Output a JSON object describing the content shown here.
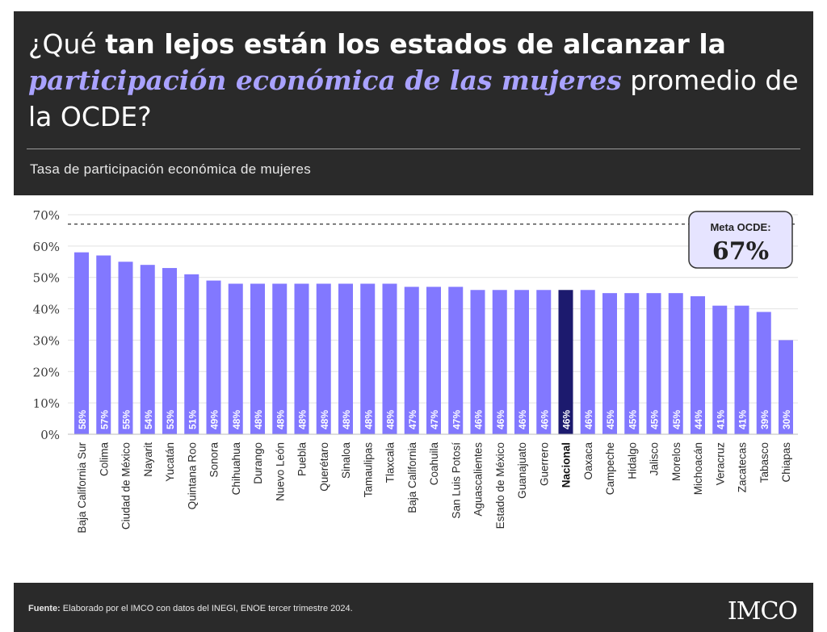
{
  "header": {
    "title_part1": "¿Qué ",
    "title_bold": "tan lejos están los estados de alcanzar la",
    "title_highlight": "participación económica de las mujeres",
    "title_part2": " promedio de la OCDE?",
    "subtitle": "Tasa de participación económica de mujeres"
  },
  "meta_box": {
    "label": "Meta OCDE:",
    "value": "67%"
  },
  "footer": {
    "source_label": "Fuente:",
    "source_text": " Elaborado por el IMCO con datos del INEGI, ENOE tercer trimestre 2024.",
    "logo": "IMCO"
  },
  "colors": {
    "bar": "#8278ff",
    "bar_highlight": "#1c1a6e",
    "meta_box_bg": "#e6e4ff",
    "header_bg": "#2a2a2a"
  },
  "chart_data": {
    "type": "bar",
    "categories": [
      "Baja California Sur",
      "Colima",
      "Ciudad de México",
      "Nayarit",
      "Yucatán",
      "Quintana Roo",
      "Sonora",
      "Chihuahua",
      "Durango",
      "Nuevo León",
      "Puebla",
      "Querétaro",
      "Sinaloa",
      "Tamaulipas",
      "Tlaxcala",
      "Baja California",
      "Coahuila",
      "San Luis Potosí",
      "Aguascalientes",
      "Estado de México",
      "Guanajuato",
      "Guerrero",
      "Nacional",
      "Oaxaca",
      "Campeche",
      "Hidalgo",
      "Jalisco",
      "Morelos",
      "Michoacán",
      "Veracruz",
      "Zacatecas",
      "Tabasco",
      "Chiapas"
    ],
    "values": [
      58,
      57,
      55,
      54,
      53,
      51,
      49,
      48,
      48,
      48,
      48,
      48,
      48,
      48,
      48,
      47,
      47,
      47,
      46,
      46,
      46,
      46,
      46,
      46,
      45,
      45,
      45,
      45,
      44,
      41,
      41,
      39,
      30
    ],
    "value_labels": [
      "58%",
      "57%",
      "55%",
      "54%",
      "53%",
      "51%",
      "49%",
      "48%",
      "48%",
      "48%",
      "48%",
      "48%",
      "48%",
      "48%",
      "48%",
      "47%",
      "47%",
      "47%",
      "46%",
      "46%",
      "46%",
      "46%",
      "46%",
      "46%",
      "45%",
      "45%",
      "45%",
      "45%",
      "44%",
      "41%",
      "41%",
      "39%",
      "30%"
    ],
    "highlight_category": "Nacional",
    "y_ticks": [
      0,
      10,
      20,
      30,
      40,
      50,
      60,
      70
    ],
    "y_tick_labels": [
      "0%",
      "10%",
      "20%",
      "30%",
      "40%",
      "50%",
      "60%",
      "70%"
    ],
    "ylim": [
      0,
      70
    ],
    "reference_line": 67,
    "grid": true
  }
}
